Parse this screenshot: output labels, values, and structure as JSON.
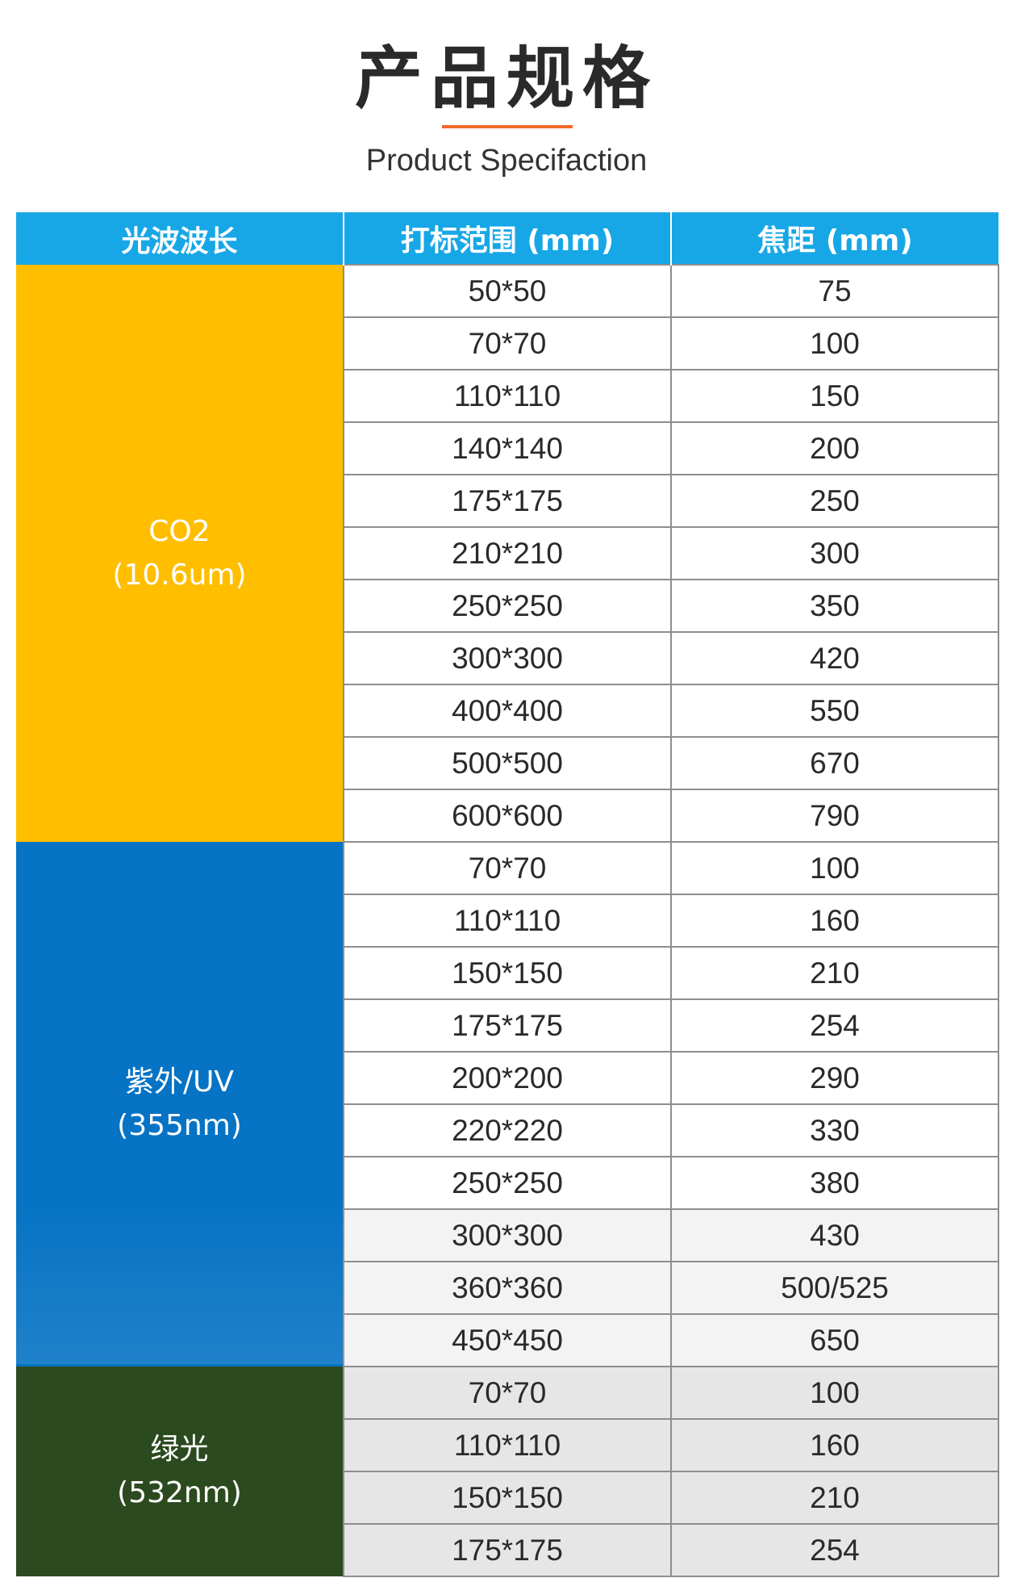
{
  "header": {
    "title": "产品规格",
    "subtitle": "Product Specifaction"
  },
  "colors": {
    "accent_line": "#f26a2a",
    "header_bg": "#18a7e6",
    "co2_bg": "#ffbe00",
    "uv_bg": "#0673c4",
    "green_bg": "#2c4a1f"
  },
  "table": {
    "columns": [
      "光波波长",
      "打标范围 (mm)",
      "焦距 (mm)"
    ],
    "groups": [
      {
        "name": "CO2",
        "wavelength": "(10.6um)",
        "rows": [
          {
            "range": "50*50",
            "focal": "75"
          },
          {
            "range": "70*70",
            "focal": "100"
          },
          {
            "range": "110*110",
            "focal": "150"
          },
          {
            "range": "140*140",
            "focal": "200"
          },
          {
            "range": "175*175",
            "focal": "250"
          },
          {
            "range": "210*210",
            "focal": "300"
          },
          {
            "range": "250*250",
            "focal": "350"
          },
          {
            "range": "300*300",
            "focal": "420"
          },
          {
            "range": "400*400",
            "focal": "550"
          },
          {
            "range": "500*500",
            "focal": "670"
          },
          {
            "range": "600*600",
            "focal": "790"
          }
        ]
      },
      {
        "name": "紫外/UV",
        "wavelength": "(355nm)",
        "rows": [
          {
            "range": "70*70",
            "focal": "100"
          },
          {
            "range": "110*110",
            "focal": "160"
          },
          {
            "range": "150*150",
            "focal": "210"
          },
          {
            "range": "175*175",
            "focal": "254"
          },
          {
            "range": "200*200",
            "focal": "290"
          },
          {
            "range": "220*220",
            "focal": "330"
          },
          {
            "range": "250*250",
            "focal": "380"
          },
          {
            "range": "300*300",
            "focal": "430"
          },
          {
            "range": "360*360",
            "focal": "500/525"
          },
          {
            "range": "450*450",
            "focal": "650"
          }
        ]
      },
      {
        "name": "绿光",
        "wavelength": "(532nm)",
        "rows": [
          {
            "range": "70*70",
            "focal": "100"
          },
          {
            "range": "110*110",
            "focal": "160"
          },
          {
            "range": "150*150",
            "focal": "210"
          },
          {
            "range": "175*175",
            "focal": "254"
          }
        ]
      }
    ]
  }
}
